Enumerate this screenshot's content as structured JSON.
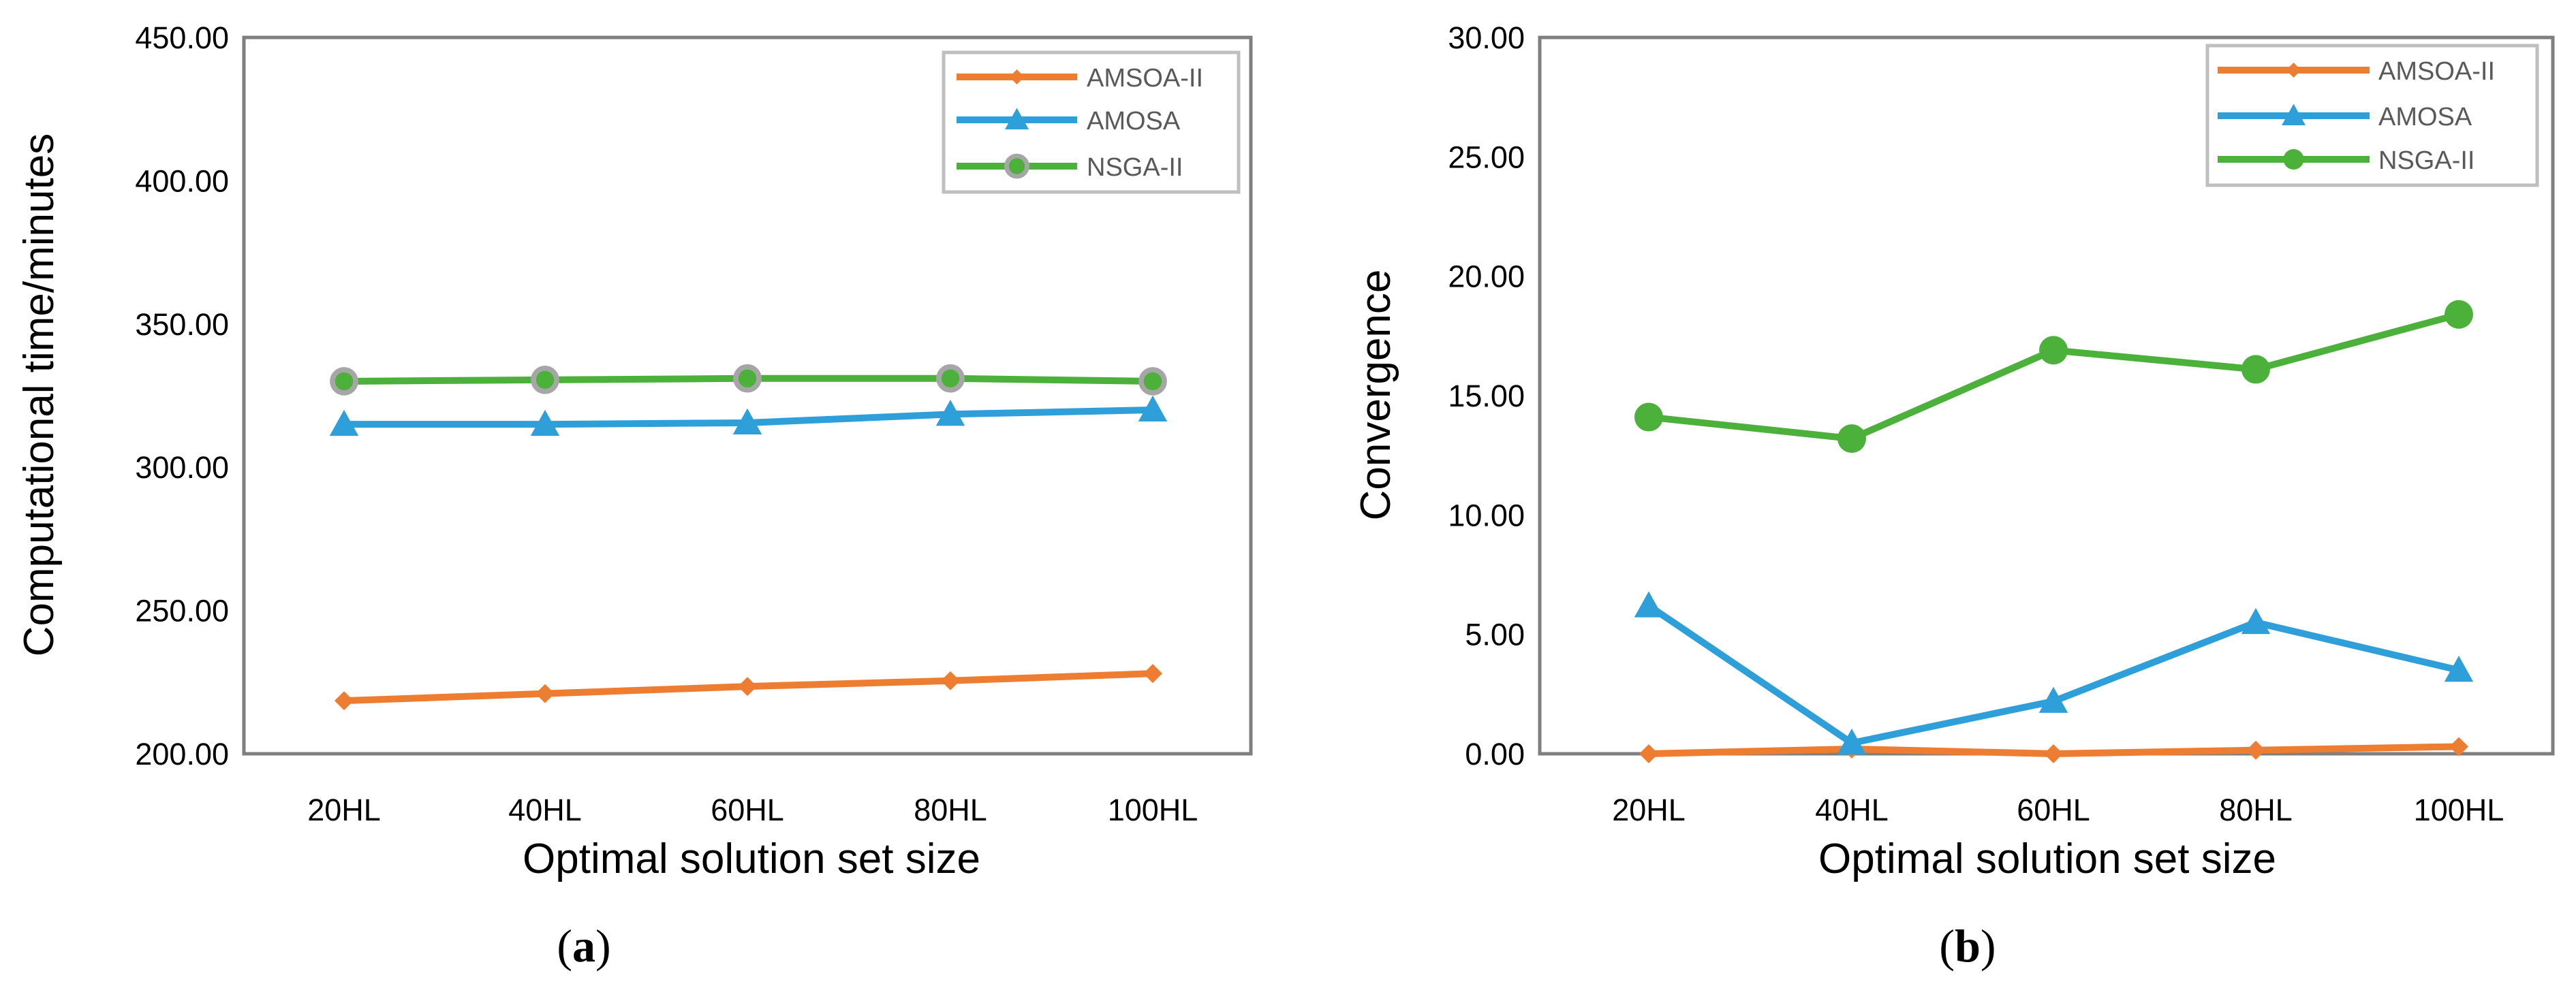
{
  "colors": {
    "AMSOA-II": "#ED7D31",
    "AMOSA": "#2E9FD8",
    "NSGA-II": "#4CB13B",
    "frame": "#7F7F7F",
    "nsga_marker_outline_a": "#A6A6A6"
  },
  "chart_data": [
    {
      "id": "a",
      "type": "line",
      "caption": {
        "open": "(",
        "letter": "a",
        "close": ")"
      },
      "title": "",
      "xlabel": "Optimal solution set size",
      "ylabel": "Computational time/minutes",
      "categories": [
        "20HL",
        "40HL",
        "60HL",
        "80HL",
        "100HL"
      ],
      "ylim": [
        200,
        450
      ],
      "yticks": [
        "200.00",
        "250.00",
        "300.00",
        "350.00",
        "400.00",
        "450.00"
      ],
      "legend_position": "top-right",
      "series": [
        {
          "name": "AMSOA-II",
          "marker": "diamond",
          "values": [
            218.5,
            221.0,
            223.5,
            225.5,
            228.0
          ]
        },
        {
          "name": "AMOSA",
          "marker": "triangle",
          "values": [
            315.0,
            315.0,
            315.5,
            318.5,
            320.0
          ]
        },
        {
          "name": "NSGA-II",
          "marker": "circle-outlined",
          "values": [
            330.0,
            330.5,
            331.0,
            331.0,
            330.0
          ]
        }
      ]
    },
    {
      "id": "b",
      "type": "line",
      "caption": {
        "open": "(",
        "letter": "b",
        "close": ")"
      },
      "title": "",
      "xlabel": "Optimal solution set size",
      "ylabel": "Convergence",
      "categories": [
        "20HL",
        "40HL",
        "60HL",
        "80HL",
        "100HL"
      ],
      "ylim": [
        0,
        30
      ],
      "yticks": [
        "0.00",
        "5.00",
        "10.00",
        "15.00",
        "20.00",
        "25.00",
        "30.00"
      ],
      "legend_position": "top-right",
      "series": [
        {
          "name": "AMSOA-II",
          "marker": "diamond",
          "values": [
            0.0,
            0.2,
            0.0,
            0.15,
            0.3
          ]
        },
        {
          "name": "AMOSA",
          "marker": "triangle",
          "values": [
            6.2,
            0.45,
            2.2,
            5.5,
            3.5
          ]
        },
        {
          "name": "NSGA-II",
          "marker": "circle",
          "values": [
            14.1,
            13.2,
            16.9,
            16.1,
            18.4
          ]
        }
      ]
    }
  ]
}
